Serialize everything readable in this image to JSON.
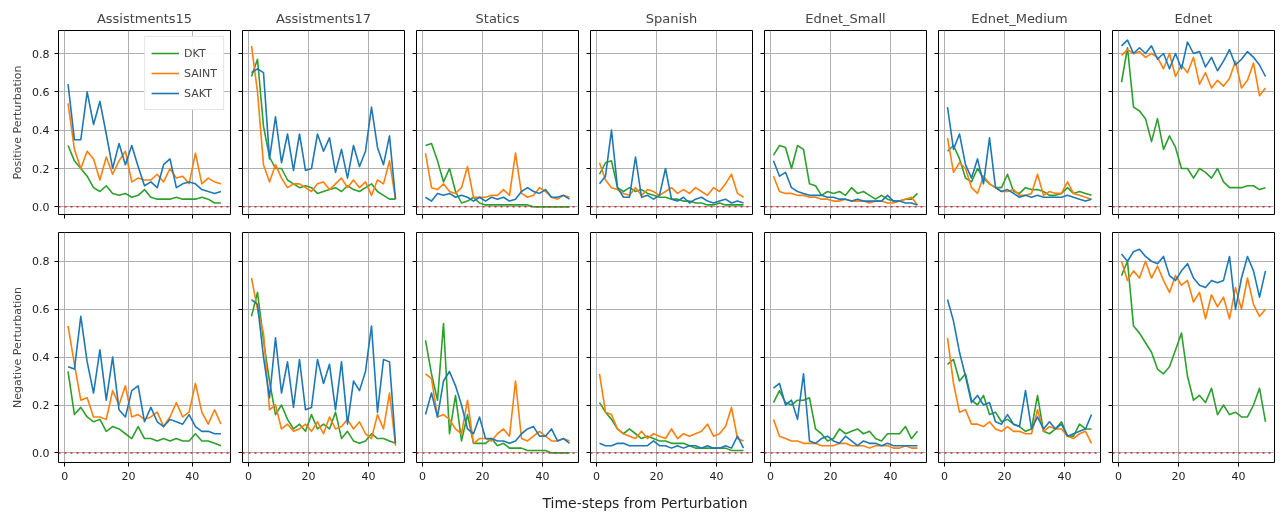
{
  "chart_data": [
    {
      "type": "line",
      "title": "Assistments15",
      "ylabel": "Positive Perturbation",
      "xlim": [
        -2,
        52
      ],
      "ylim": [
        -0.04,
        0.92
      ],
      "xticks": [
        0,
        20,
        40
      ],
      "yticks": [
        {
          "value": 0,
          "label": "0.0"
        },
        0.2,
        0.4,
        0.6,
        0.8
      ],
      "grid": true,
      "legend": "top right",
      "tick_labels": "y",
      "ref_lines": [
        {
          "axis": "y",
          "value": 0,
          "color": "#d62728",
          "line_style": "dotted"
        }
      ],
      "x": [
        1,
        3,
        5,
        7,
        9,
        11,
        13,
        15,
        17,
        19,
        21,
        23,
        25,
        27,
        29,
        31,
        33,
        35,
        37,
        39,
        41,
        43,
        45,
        47,
        49
      ],
      "series": [
        {
          "name": "DKT",
          "color": "#2ca02c",
          "values": [
            0.32,
            0.24,
            0.2,
            0.16,
            0.1,
            0.08,
            0.11,
            0.07,
            0.06,
            0.07,
            0.05,
            0.06,
            0.09,
            0.05,
            0.04,
            0.04,
            0.04,
            0.05,
            0.04,
            0.04,
            0.04,
            0.05,
            0.04,
            0.02,
            0.02
          ]
        },
        {
          "name": "SAINT",
          "color": "#ff7f0e",
          "values": [
            0.54,
            0.3,
            0.2,
            0.29,
            0.25,
            0.14,
            0.26,
            0.17,
            0.24,
            0.29,
            0.13,
            0.15,
            0.14,
            0.14,
            0.17,
            0.13,
            0.2,
            0.15,
            0.16,
            0.12,
            0.28,
            0.12,
            0.15,
            0.13,
            0.12
          ]
        },
        {
          "name": "SAKT",
          "color": "#1f77b4",
          "values": [
            0.64,
            0.35,
            0.35,
            0.6,
            0.43,
            0.55,
            0.38,
            0.2,
            0.33,
            0.22,
            0.32,
            0.21,
            0.11,
            0.13,
            0.1,
            0.22,
            0.25,
            0.1,
            0.12,
            0.13,
            0.12,
            0.09,
            0.08,
            0.07,
            0.08
          ]
        }
      ]
    },
    {
      "type": "line",
      "title": "Assistments17",
      "xlim": [
        -2,
        52
      ],
      "ylim": [
        -0.04,
        0.92
      ],
      "xticks": [
        0,
        20,
        40
      ],
      "yticks": [
        0,
        0.2,
        0.4,
        0.6,
        0.8
      ],
      "grid": true,
      "tick_labels": false,
      "ref_lines": [
        {
          "axis": "y",
          "value": 0,
          "color": "#d62728",
          "line_style": "dotted"
        }
      ],
      "x": [
        1,
        3,
        5,
        7,
        9,
        11,
        13,
        15,
        17,
        19,
        21,
        23,
        25,
        27,
        29,
        31,
        33,
        35,
        37,
        39,
        41,
        43,
        45,
        47,
        49
      ],
      "series": [
        {
          "color": "#2ca02c",
          "values": [
            0.68,
            0.77,
            0.42,
            0.26,
            0.2,
            0.2,
            0.14,
            0.12,
            0.1,
            0.11,
            0.1,
            0.07,
            0.08,
            0.09,
            0.1,
            0.08,
            0.11,
            0.09,
            0.08,
            0.1,
            0.12,
            0.08,
            0.06,
            0.04,
            0.04
          ]
        },
        {
          "color": "#ff7f0e",
          "values": [
            0.84,
            0.6,
            0.22,
            0.13,
            0.22,
            0.15,
            0.1,
            0.12,
            0.12,
            0.1,
            0.08,
            0.12,
            0.13,
            0.09,
            0.12,
            0.15,
            0.1,
            0.14,
            0.1,
            0.13,
            0.06,
            0.14,
            0.12,
            0.24,
            0.04
          ]
        },
        {
          "color": "#1f77b4",
          "values": [
            0.7,
            0.72,
            0.7,
            0.25,
            0.47,
            0.23,
            0.38,
            0.19,
            0.38,
            0.19,
            0.2,
            0.38,
            0.29,
            0.36,
            0.18,
            0.3,
            0.15,
            0.32,
            0.21,
            0.29,
            0.52,
            0.31,
            0.22,
            0.37,
            0.04
          ]
        }
      ]
    },
    {
      "type": "line",
      "title": "Statics",
      "xlim": [
        -2,
        52
      ],
      "ylim": [
        -0.04,
        0.92
      ],
      "xticks": [
        0,
        20,
        40
      ],
      "yticks": [
        0,
        0.2,
        0.4,
        0.6,
        0.8
      ],
      "grid": true,
      "tick_labels": false,
      "ref_lines": [
        {
          "axis": "y",
          "value": 0,
          "color": "#d62728",
          "line_style": "dotted"
        }
      ],
      "x": [
        1,
        3,
        5,
        7,
        9,
        11,
        13,
        15,
        17,
        19,
        21,
        23,
        25,
        27,
        29,
        31,
        33,
        35,
        37,
        39,
        41,
        43,
        45,
        47,
        49
      ],
      "series": [
        {
          "color": "#2ca02c",
          "values": [
            0.32,
            0.33,
            0.24,
            0.13,
            0.2,
            0.08,
            0.02,
            0.03,
            0.05,
            0.02,
            0.01,
            0.01,
            0.01,
            0.01,
            0.01,
            0.01,
            0.01,
            0.01,
            0.0,
            0.0,
            0.0,
            0.0,
            0.0,
            0.0,
            0.0
          ]
        },
        {
          "color": "#ff7f0e",
          "values": [
            0.28,
            0.1,
            0.09,
            0.12,
            0.08,
            0.07,
            0.1,
            0.21,
            0.05,
            0.05,
            0.05,
            0.06,
            0.06,
            0.09,
            0.06,
            0.28,
            0.07,
            0.05,
            0.06,
            0.1,
            0.08,
            0.05,
            0.04,
            0.06,
            0.05
          ]
        },
        {
          "color": "#1f77b4",
          "values": [
            0.05,
            0.03,
            0.07,
            0.06,
            0.07,
            0.05,
            0.06,
            0.05,
            0.03,
            0.05,
            0.03,
            0.05,
            0.04,
            0.05,
            0.03,
            0.04,
            0.08,
            0.1,
            0.08,
            0.07,
            0.09,
            0.05,
            0.05,
            0.06,
            0.04
          ]
        }
      ]
    },
    {
      "type": "line",
      "title": "Spanish",
      "xlim": [
        -2,
        52
      ],
      "ylim": [
        -0.04,
        0.92
      ],
      "xticks": [
        0,
        20,
        40
      ],
      "yticks": [
        0,
        0.2,
        0.4,
        0.6,
        0.8
      ],
      "grid": true,
      "tick_labels": false,
      "ref_lines": [
        {
          "axis": "y",
          "value": 0,
          "color": "#d62728",
          "line_style": "dotted"
        }
      ],
      "x": [
        1,
        3,
        5,
        7,
        9,
        11,
        13,
        15,
        17,
        19,
        21,
        23,
        25,
        27,
        29,
        31,
        33,
        35,
        37,
        39,
        41,
        43,
        45,
        47,
        49
      ],
      "series": [
        {
          "color": "#2ca02c",
          "values": [
            0.17,
            0.23,
            0.24,
            0.1,
            0.08,
            0.1,
            0.08,
            0.09,
            0.07,
            0.06,
            0.05,
            0.05,
            0.04,
            0.04,
            0.03,
            0.03,
            0.02,
            0.02,
            0.01,
            0.01,
            0.02,
            0.01,
            0.01,
            0.01,
            0.01
          ]
        },
        {
          "color": "#ff7f0e",
          "values": [
            0.23,
            0.14,
            0.1,
            0.09,
            0.07,
            0.06,
            0.1,
            0.06,
            0.09,
            0.08,
            0.06,
            0.08,
            0.1,
            0.07,
            0.09,
            0.07,
            0.1,
            0.08,
            0.06,
            0.1,
            0.08,
            0.12,
            0.17,
            0.07,
            0.05
          ]
        },
        {
          "color": "#1f77b4",
          "values": [
            0.12,
            0.16,
            0.4,
            0.1,
            0.05,
            0.05,
            0.26,
            0.05,
            0.06,
            0.04,
            0.06,
            0.2,
            0.04,
            0.03,
            0.05,
            0.02,
            0.04,
            0.05,
            0.03,
            0.02,
            0.03,
            0.04,
            0.02,
            0.03,
            0.02
          ]
        }
      ]
    },
    {
      "type": "line",
      "title": "Ednet_Small",
      "xlim": [
        -2,
        52
      ],
      "ylim": [
        -0.04,
        0.92
      ],
      "xticks": [
        0,
        20,
        40
      ],
      "yticks": [
        0,
        0.2,
        0.4,
        0.6,
        0.8
      ],
      "grid": true,
      "tick_labels": false,
      "ref_lines": [
        {
          "axis": "y",
          "value": 0,
          "color": "#d62728",
          "line_style": "dotted"
        }
      ],
      "x": [
        1,
        3,
        5,
        7,
        9,
        11,
        13,
        15,
        17,
        19,
        21,
        23,
        25,
        27,
        29,
        31,
        33,
        35,
        37,
        39,
        41,
        43,
        45,
        47,
        49
      ],
      "series": [
        {
          "color": "#2ca02c",
          "values": [
            0.27,
            0.32,
            0.31,
            0.2,
            0.32,
            0.3,
            0.12,
            0.11,
            0.06,
            0.08,
            0.07,
            0.08,
            0.06,
            0.1,
            0.07,
            0.08,
            0.06,
            0.04,
            0.06,
            0.04,
            0.03,
            0.03,
            0.04,
            0.04,
            0.07
          ]
        },
        {
          "color": "#ff7f0e",
          "values": [
            0.16,
            0.08,
            0.07,
            0.07,
            0.06,
            0.06,
            0.05,
            0.05,
            0.04,
            0.04,
            0.03,
            0.03,
            0.04,
            0.03,
            0.03,
            0.03,
            0.02,
            0.03,
            0.03,
            0.02,
            0.02,
            0.03,
            0.04,
            0.05,
            0.01
          ]
        },
        {
          "color": "#1f77b4",
          "values": [
            0.24,
            0.16,
            0.18,
            0.1,
            0.08,
            0.07,
            0.06,
            0.06,
            0.06,
            0.05,
            0.05,
            0.04,
            0.04,
            0.03,
            0.04,
            0.03,
            0.03,
            0.03,
            0.03,
            0.06,
            0.03,
            0.03,
            0.02,
            0.02,
            0.01
          ]
        }
      ]
    },
    {
      "type": "line",
      "title": "Ednet_Medium",
      "xlim": [
        -2,
        52
      ],
      "ylim": [
        -0.04,
        0.92
      ],
      "xticks": [
        0,
        20,
        40
      ],
      "yticks": [
        0,
        0.2,
        0.4,
        0.6,
        0.8
      ],
      "grid": true,
      "tick_labels": false,
      "ref_lines": [
        {
          "axis": "y",
          "value": 0,
          "color": "#d62728",
          "line_style": "dotted"
        }
      ],
      "x": [
        1,
        3,
        5,
        7,
        9,
        11,
        13,
        15,
        17,
        19,
        21,
        23,
        25,
        27,
        29,
        31,
        33,
        35,
        37,
        39,
        41,
        43,
        45,
        47,
        49
      ],
      "series": [
        {
          "color": "#2ca02c",
          "values": [
            0.29,
            0.32,
            0.25,
            0.15,
            0.13,
            0.2,
            0.15,
            0.12,
            0.1,
            0.1,
            0.17,
            0.08,
            0.07,
            0.1,
            0.09,
            0.09,
            0.08,
            0.06,
            0.06,
            0.07,
            0.1,
            0.07,
            0.08,
            0.07,
            0.06
          ]
        },
        {
          "color": "#ff7f0e",
          "values": [
            0.36,
            0.18,
            0.23,
            0.2,
            0.1,
            0.07,
            0.16,
            0.12,
            0.1,
            0.08,
            0.08,
            0.09,
            0.06,
            0.06,
            0.07,
            0.17,
            0.06,
            0.08,
            0.07,
            0.07,
            0.13,
            0.07,
            0.06,
            0.05,
            0.04
          ]
        },
        {
          "color": "#1f77b4",
          "values": [
            0.52,
            0.3,
            0.38,
            0.22,
            0.15,
            0.25,
            0.12,
            0.36,
            0.1,
            0.08,
            0.09,
            0.07,
            0.05,
            0.06,
            0.05,
            0.06,
            0.05,
            0.05,
            0.05,
            0.05,
            0.06,
            0.05,
            0.04,
            0.03,
            0.04
          ]
        }
      ]
    },
    {
      "type": "line",
      "title": "Ednet",
      "xlim": [
        -2,
        52
      ],
      "ylim": [
        -0.04,
        0.92
      ],
      "xticks": [
        0,
        20,
        40
      ],
      "yticks": [
        0,
        0.2,
        0.4,
        0.6,
        0.8
      ],
      "grid": true,
      "tick_labels": false,
      "ref_lines": [
        {
          "axis": "y",
          "value": 0,
          "color": "#d62728",
          "line_style": "dotted"
        }
      ],
      "x": [
        1,
        3,
        5,
        7,
        9,
        11,
        13,
        15,
        17,
        19,
        21,
        23,
        25,
        27,
        29,
        31,
        33,
        35,
        37,
        39,
        41,
        43,
        45,
        47,
        49
      ],
      "series": [
        {
          "color": "#2ca02c",
          "values": [
            0.65,
            0.83,
            0.52,
            0.5,
            0.46,
            0.34,
            0.46,
            0.3,
            0.37,
            0.31,
            0.2,
            0.2,
            0.15,
            0.2,
            0.18,
            0.15,
            0.2,
            0.13,
            0.1,
            0.1,
            0.1,
            0.11,
            0.11,
            0.09,
            0.1
          ]
        },
        {
          "color": "#ff7f0e",
          "values": [
            0.79,
            0.82,
            0.8,
            0.81,
            0.78,
            0.8,
            0.78,
            0.72,
            0.8,
            0.68,
            0.74,
            0.7,
            0.78,
            0.64,
            0.7,
            0.62,
            0.66,
            0.63,
            0.67,
            0.76,
            0.62,
            0.66,
            0.75,
            0.58,
            0.62
          ]
        },
        {
          "color": "#1f77b4",
          "values": [
            0.84,
            0.87,
            0.8,
            0.83,
            0.8,
            0.84,
            0.77,
            0.8,
            0.72,
            0.8,
            0.72,
            0.86,
            0.8,
            0.81,
            0.73,
            0.78,
            0.71,
            0.76,
            0.82,
            0.74,
            0.77,
            0.81,
            0.78,
            0.74,
            0.68
          ]
        }
      ]
    },
    {
      "type": "line",
      "ylabel": "Negative Perturbation",
      "xlim": [
        -2,
        52
      ],
      "ylim": [
        -0.04,
        0.92
      ],
      "xticks": [
        0,
        20,
        40
      ],
      "yticks": [
        {
          "value": 0,
          "label": "0.0"
        },
        0.2,
        0.4,
        0.6,
        0.8
      ],
      "grid": true,
      "ref_lines": [
        {
          "axis": "y",
          "value": 0,
          "color": "#d62728",
          "line_style": "dotted"
        }
      ],
      "x": [
        1,
        3,
        5,
        7,
        9,
        11,
        13,
        15,
        17,
        19,
        21,
        23,
        25,
        27,
        29,
        31,
        33,
        35,
        37,
        39,
        41,
        43,
        45,
        47,
        49
      ],
      "series": [
        {
          "color": "#2ca02c",
          "values": [
            0.34,
            0.16,
            0.19,
            0.15,
            0.13,
            0.14,
            0.09,
            0.11,
            0.1,
            0.08,
            0.06,
            0.11,
            0.06,
            0.06,
            0.05,
            0.06,
            0.05,
            0.06,
            0.05,
            0.05,
            0.08,
            0.05,
            0.05,
            0.04,
            0.03
          ]
        },
        {
          "color": "#ff7f0e",
          "values": [
            0.53,
            0.37,
            0.22,
            0.23,
            0.15,
            0.15,
            0.14,
            0.26,
            0.2,
            0.28,
            0.15,
            0.16,
            0.14,
            0.15,
            0.17,
            0.11,
            0.15,
            0.21,
            0.15,
            0.17,
            0.29,
            0.17,
            0.12,
            0.18,
            0.12
          ]
        },
        {
          "color": "#1f77b4",
          "values": [
            0.36,
            0.35,
            0.57,
            0.38,
            0.25,
            0.43,
            0.22,
            0.4,
            0.18,
            0.15,
            0.26,
            0.28,
            0.13,
            0.19,
            0.13,
            0.11,
            0.14,
            0.13,
            0.12,
            0.16,
            0.11,
            0.09,
            0.09,
            0.08,
            0.08
          ]
        }
      ]
    },
    {
      "type": "line",
      "xlim": [
        -2,
        52
      ],
      "ylim": [
        -0.04,
        0.92
      ],
      "xticks": [
        0,
        20,
        40
      ],
      "yticks": [
        0,
        0.2,
        0.4,
        0.6,
        0.8
      ],
      "grid": true,
      "tick_labels": "x",
      "ref_lines": [
        {
          "axis": "y",
          "value": 0,
          "color": "#d62728",
          "line_style": "dotted"
        }
      ],
      "x": [
        1,
        3,
        5,
        7,
        9,
        11,
        13,
        15,
        17,
        19,
        21,
        23,
        25,
        27,
        29,
        31,
        33,
        35,
        37,
        39,
        41,
        43,
        45,
        47,
        49
      ],
      "series": [
        {
          "color": "#2ca02c",
          "values": [
            0.57,
            0.67,
            0.47,
            0.3,
            0.16,
            0.2,
            0.14,
            0.1,
            0.12,
            0.09,
            0.16,
            0.1,
            0.12,
            0.1,
            0.17,
            0.06,
            0.09,
            0.05,
            0.04,
            0.05,
            0.08,
            0.06,
            0.06,
            0.05,
            0.04
          ]
        },
        {
          "color": "#ff7f0e",
          "values": [
            0.73,
            0.6,
            0.5,
            0.18,
            0.2,
            0.1,
            0.12,
            0.09,
            0.1,
            0.12,
            0.09,
            0.13,
            0.08,
            0.15,
            0.1,
            0.11,
            0.14,
            0.1,
            0.13,
            0.08,
            0.06,
            0.16,
            0.1,
            0.25,
            0.03
          ]
        },
        {
          "color": "#1f77b4",
          "values": [
            0.64,
            0.62,
            0.4,
            0.23,
            0.48,
            0.25,
            0.38,
            0.19,
            0.39,
            0.18,
            0.19,
            0.39,
            0.29,
            0.37,
            0.18,
            0.38,
            0.12,
            0.3,
            0.26,
            0.34,
            0.53,
            0.17,
            0.39,
            0.38,
            0.04
          ]
        }
      ]
    },
    {
      "type": "line",
      "xlim": [
        -2,
        52
      ],
      "ylim": [
        -0.04,
        0.92
      ],
      "xticks": [
        0,
        20,
        40
      ],
      "yticks": [
        0,
        0.2,
        0.4,
        0.6,
        0.8
      ],
      "grid": true,
      "tick_labels": "x",
      "ref_lines": [
        {
          "axis": "y",
          "value": 0,
          "color": "#d62728",
          "line_style": "dotted"
        }
      ],
      "x": [
        1,
        3,
        5,
        7,
        9,
        11,
        13,
        15,
        17,
        19,
        21,
        23,
        25,
        27,
        29,
        31,
        33,
        35,
        37,
        39,
        41,
        43,
        45,
        47,
        49
      ],
      "series": [
        {
          "color": "#2ca02c",
          "values": [
            0.47,
            0.33,
            0.22,
            0.54,
            0.08,
            0.24,
            0.05,
            0.16,
            0.04,
            0.04,
            0.04,
            0.06,
            0.03,
            0.04,
            0.02,
            0.02,
            0.02,
            0.01,
            0.01,
            0.01,
            0.01,
            0.0,
            0.0,
            0.0,
            0.0
          ]
        },
        {
          "color": "#ff7f0e",
          "values": [
            0.33,
            0.31,
            0.15,
            0.16,
            0.14,
            0.1,
            0.08,
            0.22,
            0.04,
            0.06,
            0.06,
            0.05,
            0.08,
            0.1,
            0.07,
            0.3,
            0.06,
            0.05,
            0.07,
            0.09,
            0.07,
            0.05,
            0.05,
            0.06,
            0.05
          ]
        },
        {
          "color": "#1f77b4",
          "values": [
            0.16,
            0.25,
            0.15,
            0.3,
            0.34,
            0.28,
            0.2,
            0.1,
            0.08,
            0.15,
            0.06,
            0.06,
            0.05,
            0.05,
            0.04,
            0.05,
            0.08,
            0.1,
            0.11,
            0.07,
            0.07,
            0.1,
            0.05,
            0.06,
            0.04
          ]
        }
      ]
    },
    {
      "type": "line",
      "xlabel": "Time-steps from Perturbation",
      "xlim": [
        -2,
        52
      ],
      "ylim": [
        -0.04,
        0.92
      ],
      "xticks": [
        0,
        20,
        40
      ],
      "yticks": [
        0,
        0.2,
        0.4,
        0.6,
        0.8
      ],
      "grid": true,
      "tick_labels": "x",
      "ref_lines": [
        {
          "axis": "y",
          "value": 0,
          "color": "#d62728",
          "line_style": "dotted"
        }
      ],
      "x": [
        1,
        3,
        5,
        7,
        9,
        11,
        13,
        15,
        17,
        19,
        21,
        23,
        25,
        27,
        29,
        31,
        33,
        35,
        37,
        39,
        41,
        43,
        45,
        47,
        49
      ],
      "series": [
        {
          "color": "#2ca02c",
          "values": [
            0.21,
            0.17,
            0.14,
            0.1,
            0.08,
            0.1,
            0.08,
            0.06,
            0.07,
            0.06,
            0.05,
            0.05,
            0.04,
            0.04,
            0.04,
            0.03,
            0.02,
            0.02,
            0.02,
            0.02,
            0.02,
            0.02,
            0.01,
            0.01,
            0.01
          ]
        },
        {
          "color": "#ff7f0e",
          "values": [
            0.33,
            0.17,
            0.16,
            0.1,
            0.08,
            0.07,
            0.06,
            0.09,
            0.06,
            0.08,
            0.07,
            0.06,
            0.1,
            0.06,
            0.08,
            0.07,
            0.08,
            0.09,
            0.12,
            0.07,
            0.08,
            0.11,
            0.19,
            0.06,
            0.05
          ]
        },
        {
          "color": "#1f77b4",
          "values": [
            0.04,
            0.03,
            0.03,
            0.04,
            0.04,
            0.03,
            0.03,
            0.03,
            0.03,
            0.05,
            0.03,
            0.03,
            0.02,
            0.03,
            0.02,
            0.03,
            0.03,
            0.02,
            0.03,
            0.02,
            0.02,
            0.03,
            0.02,
            0.07,
            0.02
          ]
        }
      ]
    },
    {
      "type": "line",
      "xlim": [
        -2,
        52
      ],
      "ylim": [
        -0.04,
        0.92
      ],
      "xticks": [
        0,
        20,
        40
      ],
      "yticks": [
        0,
        0.2,
        0.4,
        0.6,
        0.8
      ],
      "grid": true,
      "tick_labels": "x",
      "ref_lines": [
        {
          "axis": "y",
          "value": 0,
          "color": "#d62728",
          "line_style": "dotted"
        }
      ],
      "x": [
        1,
        3,
        5,
        7,
        9,
        11,
        13,
        15,
        17,
        19,
        21,
        23,
        25,
        27,
        29,
        31,
        33,
        35,
        37,
        39,
        41,
        43,
        45,
        47,
        49
      ],
      "series": [
        {
          "color": "#2ca02c",
          "values": [
            0.21,
            0.26,
            0.21,
            0.2,
            0.22,
            0.22,
            0.23,
            0.1,
            0.08,
            0.05,
            0.06,
            0.1,
            0.08,
            0.09,
            0.1,
            0.08,
            0.09,
            0.06,
            0.05,
            0.08,
            0.08,
            0.08,
            0.11,
            0.06,
            0.09
          ]
        },
        {
          "color": "#ff7f0e",
          "values": [
            0.14,
            0.07,
            0.06,
            0.05,
            0.05,
            0.04,
            0.04,
            0.04,
            0.03,
            0.03,
            0.03,
            0.04,
            0.04,
            0.03,
            0.03,
            0.03,
            0.02,
            0.03,
            0.03,
            0.03,
            0.02,
            0.02,
            0.03,
            0.02,
            0.02
          ]
        },
        {
          "color": "#1f77b4",
          "values": [
            0.27,
            0.29,
            0.2,
            0.22,
            0.14,
            0.33,
            0.05,
            0.04,
            0.06,
            0.07,
            0.05,
            0.04,
            0.07,
            0.05,
            0.03,
            0.05,
            0.04,
            0.04,
            0.03,
            0.04,
            0.03,
            0.03,
            0.03,
            0.03,
            0.03
          ]
        }
      ]
    },
    {
      "type": "line",
      "xlim": [
        -2,
        52
      ],
      "ylim": [
        -0.04,
        0.92
      ],
      "xticks": [
        0,
        20,
        40
      ],
      "yticks": [
        0,
        0.2,
        0.4,
        0.6,
        0.8
      ],
      "grid": true,
      "tick_labels": "x",
      "ref_lines": [
        {
          "axis": "y",
          "value": 0,
          "color": "#d62728",
          "line_style": "dotted"
        }
      ],
      "x": [
        1,
        3,
        5,
        7,
        9,
        11,
        13,
        15,
        17,
        19,
        21,
        23,
        25,
        27,
        29,
        31,
        33,
        35,
        37,
        39,
        41,
        43,
        45,
        47,
        49
      ],
      "series": [
        {
          "color": "#2ca02c",
          "values": [
            0.37,
            0.39,
            0.3,
            0.33,
            0.22,
            0.2,
            0.24,
            0.16,
            0.17,
            0.13,
            0.14,
            0.12,
            0.11,
            0.09,
            0.1,
            0.24,
            0.09,
            0.08,
            0.1,
            0.13,
            0.07,
            0.07,
            0.12,
            0.1,
            0.1
          ]
        },
        {
          "color": "#ff7f0e",
          "values": [
            0.48,
            0.29,
            0.17,
            0.18,
            0.12,
            0.12,
            0.11,
            0.13,
            0.1,
            0.09,
            0.11,
            0.09,
            0.09,
            0.08,
            0.08,
            0.18,
            0.09,
            0.11,
            0.1,
            0.1,
            0.07,
            0.06,
            0.08,
            0.09,
            0.04
          ]
        },
        {
          "color": "#1f77b4",
          "values": [
            0.64,
            0.55,
            0.42,
            0.32,
            0.21,
            0.24,
            0.2,
            0.21,
            0.13,
            0.12,
            0.16,
            0.12,
            0.11,
            0.26,
            0.1,
            0.15,
            0.1,
            0.13,
            0.1,
            0.12,
            0.07,
            0.08,
            0.09,
            0.1,
            0.16
          ]
        }
      ]
    },
    {
      "type": "line",
      "xlim": [
        -2,
        52
      ],
      "ylim": [
        -0.04,
        0.92
      ],
      "xticks": [
        0,
        20,
        40
      ],
      "yticks": [
        0,
        0.2,
        0.4,
        0.6,
        0.8
      ],
      "grid": true,
      "tick_labels": "x",
      "ref_lines": [
        {
          "axis": "y",
          "value": 0,
          "color": "#d62728",
          "line_style": "dotted"
        }
      ],
      "x": [
        1,
        3,
        5,
        7,
        9,
        11,
        13,
        15,
        17,
        19,
        21,
        23,
        25,
        27,
        29,
        31,
        33,
        35,
        37,
        39,
        41,
        43,
        45,
        47,
        49
      ],
      "series": [
        {
          "color": "#2ca02c",
          "values": [
            0.74,
            0.8,
            0.53,
            0.5,
            0.46,
            0.42,
            0.35,
            0.33,
            0.36,
            0.43,
            0.5,
            0.32,
            0.22,
            0.24,
            0.21,
            0.27,
            0.16,
            0.2,
            0.16,
            0.17,
            0.15,
            0.15,
            0.2,
            0.27,
            0.13
          ]
        },
        {
          "color": "#ff7f0e",
          "values": [
            0.8,
            0.72,
            0.76,
            0.73,
            0.8,
            0.73,
            0.78,
            0.72,
            0.67,
            0.74,
            0.7,
            0.72,
            0.63,
            0.67,
            0.56,
            0.66,
            0.61,
            0.65,
            0.56,
            0.69,
            0.6,
            0.73,
            0.62,
            0.57,
            0.6
          ]
        },
        {
          "color": "#1f77b4",
          "values": [
            0.83,
            0.8,
            0.84,
            0.85,
            0.82,
            0.8,
            0.79,
            0.82,
            0.74,
            0.72,
            0.76,
            0.79,
            0.73,
            0.7,
            0.69,
            0.72,
            0.71,
            0.72,
            0.82,
            0.6,
            0.73,
            0.82,
            0.76,
            0.65,
            0.76
          ]
        }
      ]
    }
  ]
}
